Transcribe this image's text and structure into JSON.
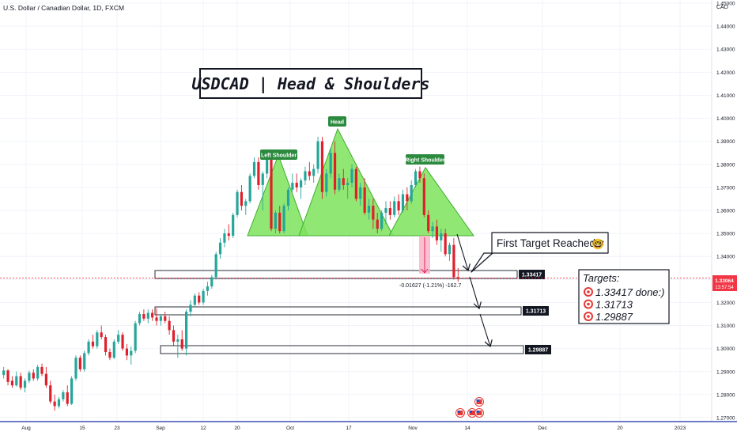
{
  "header": {
    "symbol_text": "U.S. Dollar / Canadian Dollar, 1D, FXCM",
    "currency_label": "CAD"
  },
  "title_box": {
    "text": "USDCAD | Head & Shoulders"
  },
  "pattern_labels": {
    "left_shoulder": "Left Shoulder",
    "head": "Head",
    "right_shoulder": "Right Shoulder"
  },
  "callout": {
    "text": "First Target Reached",
    "emoji": "🤓"
  },
  "measure_text": "-0.01627 (-1.21%) -162.7",
  "targets_box": {
    "title": "Targets:",
    "items": [
      "1.33417 done:)",
      "1.31713",
      "1.29887"
    ]
  },
  "price_tags": {
    "level1": "1.33417",
    "level2": "1.31713",
    "level3": "1.29887"
  },
  "current_price": {
    "price": "1.33064",
    "countdown": "13:57:54"
  },
  "colors": {
    "bull": "#26a69a",
    "bear": "#e01f2b",
    "pattern_fill": "#7ee35c",
    "pattern_stroke": "#3fae2f",
    "label_bg": "#2b8a3e",
    "price_line": "#f23645",
    "grid": "#f0f3fa",
    "axis_text": "#131722",
    "bottom_line": "#3f51b5"
  },
  "chart_data": {
    "type": "candlestick",
    "y_axis_ticks": [
      "1.45000",
      "1.44000",
      "1.43000",
      "1.42000",
      "1.41000",
      "1.40000",
      "1.39000",
      "1.38000",
      "1.37000",
      "1.36000",
      "1.35000",
      "1.34000",
      "1.33000",
      "1.32000",
      "1.31000",
      "1.30000",
      "1.29000",
      "1.28000",
      "1.27000"
    ],
    "y_range": [
      1.2685,
      1.4535
    ],
    "x_axis_labels": [
      "Aug",
      "15",
      "23",
      "Sep",
      "12",
      "20",
      "Oct",
      "17",
      "Nov",
      "14",
      "Dec",
      "20",
      "2023"
    ],
    "levels": [
      1.33417,
      1.31713,
      1.29887
    ],
    "current_price": 1.33064,
    "candles": [
      [
        1.2885,
        1.292,
        1.287,
        1.2905
      ],
      [
        1.2905,
        1.291,
        1.284,
        1.2855
      ],
      [
        1.286,
        1.288,
        1.283,
        1.284
      ],
      [
        1.284,
        1.29,
        1.2835,
        1.288
      ],
      [
        1.288,
        1.2895,
        1.282,
        1.283
      ],
      [
        1.283,
        1.287,
        1.281,
        1.286
      ],
      [
        1.286,
        1.2905,
        1.285,
        1.2895
      ],
      [
        1.2895,
        1.291,
        1.286,
        1.287
      ],
      [
        1.287,
        1.293,
        1.286,
        1.292
      ],
      [
        1.292,
        1.2935,
        1.288,
        1.289
      ],
      [
        1.289,
        1.292,
        1.283,
        1.284
      ],
      [
        1.284,
        1.286,
        1.276,
        1.277
      ],
      [
        1.277,
        1.28,
        1.273,
        1.275
      ],
      [
        1.275,
        1.279,
        1.274,
        1.278
      ],
      [
        1.278,
        1.282,
        1.277,
        1.281
      ],
      [
        1.281,
        1.284,
        1.275,
        1.276
      ],
      [
        1.276,
        1.288,
        1.2755,
        1.287
      ],
      [
        1.287,
        1.297,
        1.286,
        1.296
      ],
      [
        1.296,
        1.297,
        1.29,
        1.291
      ],
      [
        1.291,
        1.299,
        1.29,
        1.298
      ],
      [
        1.298,
        1.304,
        1.297,
        1.303
      ],
      [
        1.303,
        1.306,
        1.3,
        1.301
      ],
      [
        1.301,
        1.308,
        1.3,
        1.307
      ],
      [
        1.307,
        1.31,
        1.304,
        1.305
      ],
      [
        1.305,
        1.306,
        1.297,
        1.2985
      ],
      [
        1.2985,
        1.3,
        1.295,
        1.296
      ],
      [
        1.296,
        1.304,
        1.2955,
        1.303
      ],
      [
        1.303,
        1.308,
        1.302,
        1.306
      ],
      [
        1.306,
        1.307,
        1.299,
        1.3
      ],
      [
        1.3,
        1.302,
        1.295,
        1.297
      ],
      [
        1.297,
        1.301,
        1.293,
        1.299
      ],
      [
        1.299,
        1.312,
        1.298,
        1.311
      ],
      [
        1.311,
        1.316,
        1.31,
        1.315
      ],
      [
        1.315,
        1.317,
        1.312,
        1.313
      ],
      [
        1.313,
        1.317,
        1.311,
        1.3155
      ],
      [
        1.3155,
        1.317,
        1.312,
        1.3135
      ],
      [
        1.3135,
        1.3175,
        1.31,
        1.312
      ],
      [
        1.312,
        1.315,
        1.31,
        1.314
      ],
      [
        1.314,
        1.316,
        1.311,
        1.312
      ],
      [
        1.312,
        1.314,
        1.306,
        1.308
      ],
      [
        1.308,
        1.31,
        1.301,
        1.303
      ],
      [
        1.303,
        1.306,
        1.296,
        1.304
      ],
      [
        1.304,
        1.308,
        1.299,
        1.3
      ],
      [
        1.3,
        1.317,
        1.297,
        1.316
      ],
      [
        1.316,
        1.321,
        1.314,
        1.319
      ],
      [
        1.319,
        1.324,
        1.318,
        1.323
      ],
      [
        1.323,
        1.3245,
        1.319,
        1.32
      ],
      [
        1.32,
        1.326,
        1.319,
        1.325
      ],
      [
        1.325,
        1.329,
        1.323,
        1.327
      ],
      [
        1.327,
        1.332,
        1.326,
        1.331
      ],
      [
        1.331,
        1.342,
        1.33,
        1.341
      ],
      [
        1.341,
        1.348,
        1.339,
        1.346
      ],
      [
        1.346,
        1.352,
        1.344,
        1.35
      ],
      [
        1.35,
        1.354,
        1.347,
        1.349
      ],
      [
        1.349,
        1.359,
        1.348,
        1.358
      ],
      [
        1.358,
        1.369,
        1.357,
        1.368
      ],
      [
        1.368,
        1.371,
        1.36,
        1.362
      ],
      [
        1.362,
        1.365,
        1.358,
        1.364
      ],
      [
        1.364,
        1.376,
        1.363,
        1.375
      ],
      [
        1.375,
        1.383,
        1.374,
        1.381
      ],
      [
        1.381,
        1.383,
        1.369,
        1.371
      ],
      [
        1.371,
        1.377,
        1.36,
        1.376
      ],
      [
        1.376,
        1.384,
        1.374,
        1.383
      ],
      [
        1.383,
        1.384,
        1.351,
        1.352
      ],
      [
        1.352,
        1.36,
        1.35,
        1.359
      ],
      [
        1.359,
        1.362,
        1.35,
        1.351
      ],
      [
        1.351,
        1.363,
        1.35,
        1.362
      ],
      [
        1.362,
        1.37,
        1.36,
        1.369
      ],
      [
        1.369,
        1.376,
        1.368,
        1.372
      ],
      [
        1.372,
        1.376,
        1.368,
        1.37
      ],
      [
        1.37,
        1.374,
        1.365,
        1.373
      ],
      [
        1.373,
        1.379,
        1.371,
        1.377
      ],
      [
        1.377,
        1.381,
        1.373,
        1.375
      ],
      [
        1.375,
        1.38,
        1.372,
        1.378
      ],
      [
        1.378,
        1.392,
        1.376,
        1.39
      ],
      [
        1.39,
        1.392,
        1.365,
        1.368
      ],
      [
        1.368,
        1.378,
        1.366,
        1.376
      ],
      [
        1.376,
        1.387,
        1.374,
        1.385
      ],
      [
        1.385,
        1.39,
        1.367,
        1.369
      ],
      [
        1.369,
        1.376,
        1.368,
        1.374
      ],
      [
        1.374,
        1.378,
        1.369,
        1.371
      ],
      [
        1.371,
        1.374,
        1.365,
        1.372
      ],
      [
        1.372,
        1.38,
        1.37,
        1.378
      ],
      [
        1.378,
        1.379,
        1.364,
        1.365
      ],
      [
        1.365,
        1.372,
        1.362,
        1.37
      ],
      [
        1.37,
        1.374,
        1.358,
        1.359
      ],
      [
        1.359,
        1.365,
        1.356,
        1.362
      ],
      [
        1.362,
        1.365,
        1.352,
        1.356
      ],
      [
        1.356,
        1.359,
        1.35,
        1.352
      ],
      [
        1.352,
        1.36,
        1.351,
        1.359
      ],
      [
        1.359,
        1.364,
        1.354,
        1.361
      ],
      [
        1.361,
        1.364,
        1.356,
        1.358
      ],
      [
        1.358,
        1.366,
        1.357,
        1.364
      ],
      [
        1.364,
        1.367,
        1.358,
        1.36
      ],
      [
        1.36,
        1.369,
        1.359,
        1.367
      ],
      [
        1.367,
        1.37,
        1.36,
        1.364
      ],
      [
        1.364,
        1.373,
        1.363,
        1.371
      ],
      [
        1.371,
        1.378,
        1.37,
        1.377
      ],
      [
        1.377,
        1.379,
        1.372,
        1.374
      ],
      [
        1.374,
        1.376,
        1.357,
        1.358
      ],
      [
        1.358,
        1.36,
        1.35,
        1.351
      ],
      [
        1.351,
        1.355,
        1.348,
        1.353
      ],
      [
        1.353,
        1.356,
        1.345,
        1.347
      ],
      [
        1.347,
        1.352,
        1.342,
        1.35
      ],
      [
        1.35,
        1.352,
        1.34,
        1.341
      ],
      [
        1.341,
        1.346,
        1.338,
        1.345
      ],
      [
        1.345,
        1.348,
        1.33,
        1.331
      ],
      [
        1.331,
        1.335,
        1.329,
        1.3306
      ]
    ]
  }
}
